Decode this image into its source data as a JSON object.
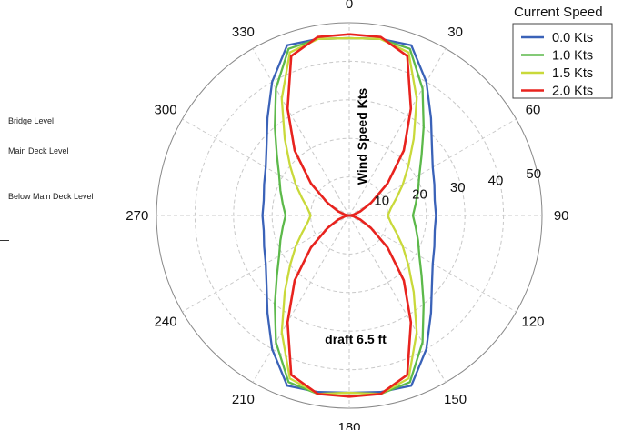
{
  "side_labels": {
    "bridge": "Bridge Level",
    "main_deck": "Main Deck Level",
    "below_main_deck": "Below Main Deck Level"
  },
  "chart_data": {
    "type": "polar-line",
    "radial_axis_label": "Wind Speed Kts",
    "radial_ticks": [
      10,
      20,
      30,
      40,
      50
    ],
    "rlim": [
      0,
      50
    ],
    "angular_ticks": [
      0,
      30,
      60,
      90,
      120,
      150,
      180,
      210,
      240,
      270,
      300,
      330
    ],
    "annotation": "draft  6.5 ft",
    "legend": {
      "title": "Current Speed",
      "placement": "top-right"
    },
    "grid": true,
    "series": [
      {
        "name": "0.0 Kts",
        "color": "#3a62b8",
        "angles": [
          0,
          10,
          20,
          30,
          40,
          50,
          60,
          70,
          80,
          90,
          100,
          110,
          120,
          130,
          140,
          150,
          160,
          170,
          180
        ],
        "values": [
          46,
          46.5,
          47,
          40,
          33,
          28,
          25,
          23.5,
          22.5,
          22.5,
          22.5,
          23.5,
          25,
          28,
          33,
          40,
          47,
          46.5,
          46
        ]
      },
      {
        "name": "1.0 Kts",
        "color": "#5cb94a",
        "angles": [
          0,
          10,
          20,
          30,
          40,
          50,
          60,
          70,
          80,
          90,
          100,
          110,
          120,
          130,
          140,
          150,
          160,
          170,
          180
        ],
        "values": [
          46,
          46.5,
          46,
          38,
          30,
          24.5,
          21,
          19,
          17.5,
          16.5,
          17.5,
          19,
          21,
          24.5,
          30,
          38,
          46,
          47,
          46
        ]
      },
      {
        "name": "1.5 Kts",
        "color": "#c9d93a",
        "angles": [
          0,
          10,
          20,
          30,
          40,
          50,
          60,
          70,
          80,
          90,
          100,
          110,
          120,
          130,
          140,
          150,
          160,
          170,
          180
        ],
        "values": [
          46,
          46.5,
          45,
          35,
          26,
          20,
          16,
          13,
          11,
          10,
          11,
          13,
          16,
          20,
          26,
          35,
          45,
          47,
          46
        ]
      },
      {
        "name": "2.0 Kts",
        "color": "#e8231e",
        "angles": [
          0,
          10,
          20,
          30,
          40,
          50,
          60,
          70,
          80,
          90,
          100,
          110,
          120,
          130,
          140,
          150,
          160,
          170,
          180
        ],
        "values": [
          47,
          47,
          44,
          32,
          22,
          13,
          6.5,
          3,
          1,
          0,
          1,
          3,
          6.5,
          13,
          22,
          32,
          44,
          47,
          47
        ]
      }
    ]
  }
}
